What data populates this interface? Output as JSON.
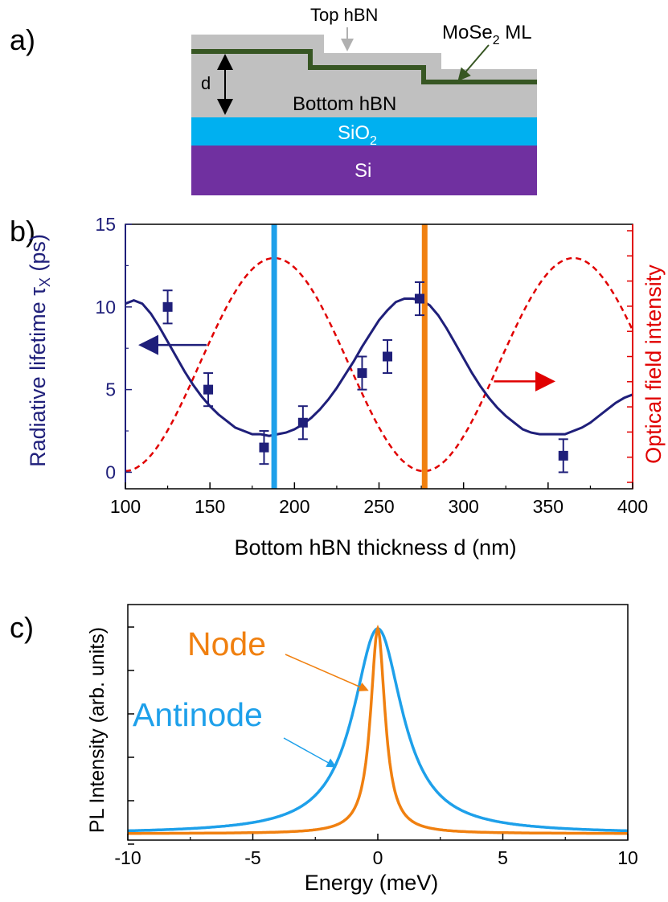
{
  "panels": {
    "a_label": "a)",
    "b_label": "b)",
    "c_label": "c)"
  },
  "schematic": {
    "top_hbn": "Top hBN",
    "mose2": "MoSe",
    "mose2_sub": "2",
    "mose2_suffix": " ML",
    "d_label": "d",
    "bottom_hbn": "Bottom hBN",
    "sio2": "SiO",
    "sio2_sub": "2",
    "si": "Si",
    "colors": {
      "hbn": "#c0c0c0",
      "mose2": "#375623",
      "sio2": "#00b0f0",
      "si": "#7030a0"
    }
  },
  "chart_data": [
    {
      "type": "line",
      "panel": "b",
      "xlabel": "Bottom hBN thickness d (nm)",
      "ylabel": "Radiative lifetime τ",
      "ylabel_sub": "X",
      "ylabel_unit": " (ps)",
      "y2label": "Optical field intensity",
      "xlim": [
        100,
        400
      ],
      "ylim": [
        -1,
        15
      ],
      "xticks": [
        100,
        150,
        200,
        250,
        300,
        350,
        400
      ],
      "yticks": [
        0,
        5,
        10,
        15
      ],
      "colors": {
        "left_axis": "#1f1f7a",
        "right_axis": "#e00000",
        "line_node": "#f08010",
        "line_antinode": "#1ea0ea"
      },
      "measured": {
        "marker": "square",
        "points": [
          {
            "x": 125,
            "y": 10.0,
            "err": 1.0
          },
          {
            "x": 149,
            "y": 5.0,
            "err": 1.0
          },
          {
            "x": 182,
            "y": 1.5,
            "err": 1.0
          },
          {
            "x": 205,
            "y": 3.0,
            "err": 1.0
          },
          {
            "x": 240,
            "y": 6.0,
            "err": 1.0
          },
          {
            "x": 255,
            "y": 7.0,
            "err": 1.0
          },
          {
            "x": 274,
            "y": 10.5,
            "err": 1.0
          },
          {
            "x": 359,
            "y": 1.0,
            "err": 1.0
          }
        ]
      },
      "lifetime_model": {
        "x": [
          100,
          105,
          110,
          115,
          120,
          125,
          130,
          135,
          140,
          145,
          150,
          155,
          160,
          165,
          170,
          175,
          180,
          185,
          190,
          195,
          200,
          205,
          210,
          215,
          220,
          225,
          230,
          235,
          240,
          245,
          250,
          255,
          260,
          265,
          270,
          275,
          280,
          285,
          290,
          295,
          300,
          305,
          310,
          315,
          320,
          325,
          330,
          335,
          340,
          345,
          350,
          355,
          360,
          365,
          370,
          375,
          380,
          385,
          390,
          395,
          400
        ],
        "y": [
          10.2,
          10.4,
          10.2,
          9.6,
          8.8,
          7.9,
          7.0,
          6.1,
          5.3,
          4.6,
          4.0,
          3.5,
          3.1,
          2.7,
          2.5,
          2.3,
          2.3,
          2.2,
          2.3,
          2.4,
          2.6,
          2.9,
          3.3,
          3.8,
          4.4,
          5.1,
          5.9,
          6.7,
          7.6,
          8.4,
          9.2,
          9.8,
          10.3,
          10.5,
          10.5,
          10.4,
          10.1,
          9.5,
          8.7,
          7.8,
          6.9,
          6.0,
          5.2,
          4.5,
          3.9,
          3.4,
          3.0,
          2.6,
          2.4,
          2.3,
          2.3,
          2.3,
          2.3,
          2.5,
          2.7,
          3.0,
          3.4,
          3.8,
          4.2,
          4.5,
          4.7
        ]
      },
      "field_intensity_model": {
        "axis": "right",
        "peaks_at_x": [
          188,
          360
        ],
        "minima_at_x": [
          100,
          277
        ],
        "period_nm": 177
      },
      "vertical_lines": [
        {
          "x": 188,
          "color": "#1ea0ea"
        },
        {
          "x": 277,
          "color": "#f08010"
        }
      ],
      "arrows": [
        {
          "points_to": "left",
          "color": "#1f1f7a"
        },
        {
          "points_to": "right",
          "color": "#e00000"
        }
      ]
    },
    {
      "type": "line",
      "panel": "c",
      "xlabel": "Energy (meV)",
      "ylabel": "PL Intensity (arb. units)",
      "xlim": [
        -10,
        10
      ],
      "xticks": [
        -10,
        -5,
        0,
        5,
        10
      ],
      "series": [
        {
          "name": "Node",
          "color": "#f08010",
          "shape": "lorentzian",
          "center": 0,
          "fwhm": 0.7,
          "peak": 1.0
        },
        {
          "name": "Antinode",
          "color": "#1ea0ea",
          "shape": "lorentzian",
          "center": 0,
          "fwhm": 2.4,
          "peak": 1.0
        }
      ]
    }
  ]
}
